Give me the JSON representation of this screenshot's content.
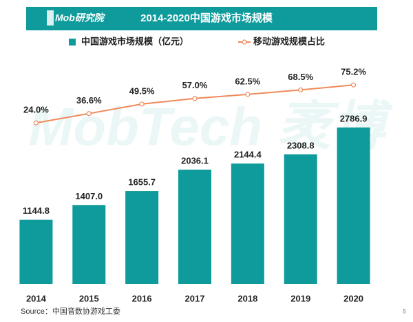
{
  "brand": "Mob研究院",
  "watermark": "MobTech 袤博",
  "source": "Source：中国音数协游戏工委",
  "page_number": "5",
  "chart_data": {
    "type": "bar-line",
    "title": "2014-2020中国游戏市场规模",
    "categories": [
      "2014",
      "2015",
      "2016",
      "2017",
      "2018",
      "2019",
      "2020"
    ],
    "series": [
      {
        "name": "中国游戏市场规模（亿元）",
        "type": "bar",
        "color": "#0f9b9b",
        "values": [
          1144.8,
          1407.0,
          1655.7,
          2036.1,
          2144.4,
          2308.8,
          2786.9
        ],
        "value_labels": [
          "1144.8",
          "1407.0",
          "1655.7",
          "2036.1",
          "2144.4",
          "2308.8",
          "2786.9"
        ]
      },
      {
        "name": "移动游戏规模占比",
        "type": "line",
        "axis": "y2",
        "color": "#f0895a",
        "values": [
          24.0,
          36.6,
          49.5,
          57.0,
          62.5,
          68.5,
          75.2
        ],
        "value_labels": [
          "24.0%",
          "36.6%",
          "49.5%",
          "57.0%",
          "62.5%",
          "68.5%",
          "75.2%"
        ]
      }
    ],
    "ylim": [
      0,
      3000
    ],
    "y2lim": [
      0,
      100
    ],
    "legend": "top"
  }
}
